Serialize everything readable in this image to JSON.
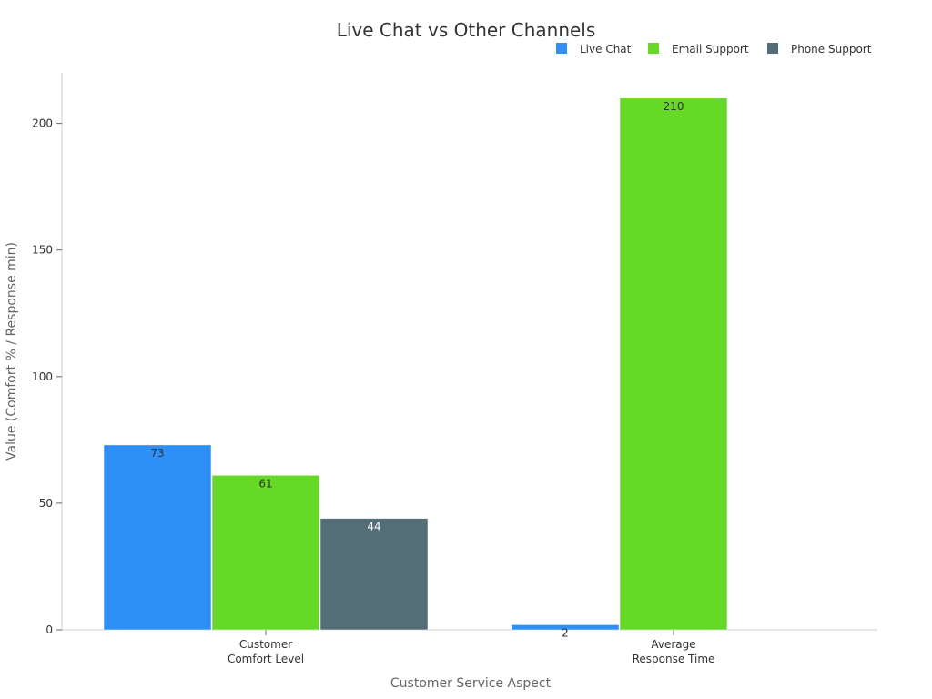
{
  "chart_data": {
    "type": "bar",
    "title": "Live Chat vs Other Channels",
    "xlabel": "Customer Service Aspect",
    "ylabel": "Value (Comfort % / Response min)",
    "categories": [
      [
        "Customer",
        "Comfort Level"
      ],
      [
        "Average",
        "Response Time"
      ]
    ],
    "ylim": [
      0,
      220
    ],
    "yticks": [
      0,
      50,
      100,
      150,
      200
    ],
    "grid": false,
    "legend_position": "top-right",
    "series": [
      {
        "name": "Live Chat",
        "color": "#2E8FF7",
        "label_color": "#333333",
        "values": [
          73,
          2
        ]
      },
      {
        "name": "Email Support",
        "color": "#66D926",
        "label_color": "#333333",
        "values": [
          61,
          210
        ]
      },
      {
        "name": "Phone Support",
        "color": "#546E78",
        "label_color": "#ffffff",
        "values": [
          44,
          null
        ]
      }
    ]
  }
}
